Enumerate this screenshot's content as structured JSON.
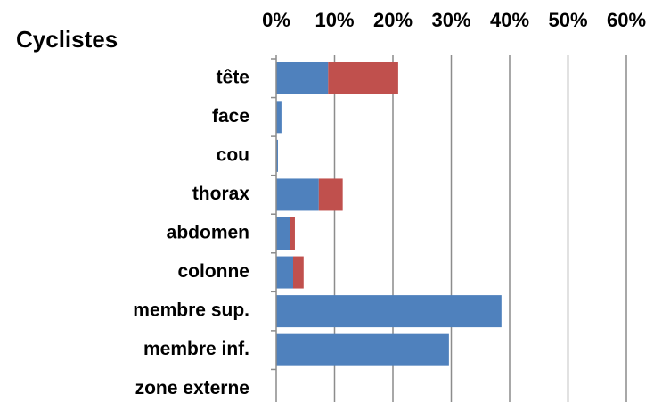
{
  "chart_data": {
    "type": "stacked-barh",
    "title": "Cyclistes",
    "categories": [
      "tête",
      "face",
      "cou",
      "thorax",
      "abdomen",
      "colonne",
      "membre sup.",
      "membre inf.",
      "zone externe"
    ],
    "series": [
      {
        "color": "#4f81bd",
        "values": [
          8.9,
          0.9,
          0.3,
          7.3,
          2.4,
          2.9,
          38.6,
          29.6,
          0
        ]
      },
      {
        "color": "#c0504d",
        "values": [
          12.0,
          0,
          0,
          4.1,
          0.8,
          1.8,
          0,
          0,
          0
        ]
      }
    ],
    "xlim": [
      0,
      60
    ],
    "xticks": [
      {
        "value": 0,
        "label": "0%"
      },
      {
        "value": 10,
        "label": "10%"
      },
      {
        "value": 20,
        "label": "20%"
      },
      {
        "value": 30,
        "label": "30%"
      },
      {
        "value": 40,
        "label": "40%"
      },
      {
        "value": 50,
        "label": "50%"
      },
      {
        "value": 60,
        "label": "60%"
      }
    ],
    "grid": true
  }
}
